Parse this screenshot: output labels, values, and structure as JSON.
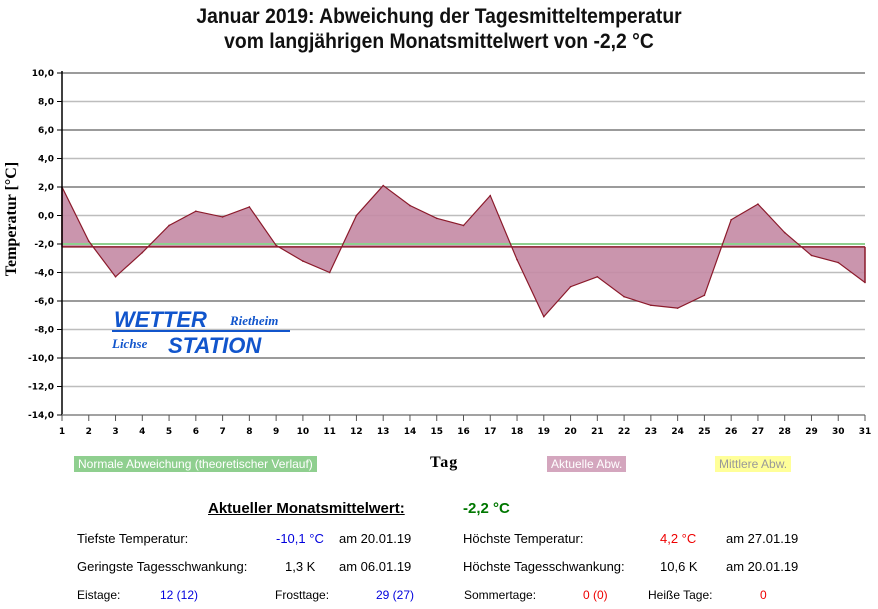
{
  "chart_data": {
    "type": "area",
    "title_line1": "Januar 2019: Abweichung der Tagesmitteltemperatur",
    "title_line2": "vom langjährigen Monatsmittelwert von -2,2 °C",
    "xlabel": "Tag",
    "ylabel": "Temperatur [°C]",
    "ylim": [
      -14,
      10
    ],
    "xlim": [
      1,
      31
    ],
    "grid": true,
    "y_ticks": [
      "10,0",
      "8,0",
      "6,0",
      "4,0",
      "2,0",
      "0,0",
      "-2,0",
      "-4,0",
      "-6,0",
      "-8,0",
      "-10,0",
      "-12,0",
      "-14,0"
    ],
    "y_tick_values": [
      10,
      8,
      6,
      4,
      2,
      0,
      -2,
      -4,
      -6,
      -8,
      -10,
      -12,
      -14
    ],
    "x": [
      1,
      2,
      3,
      4,
      5,
      6,
      7,
      8,
      9,
      10,
      11,
      12,
      13,
      14,
      15,
      16,
      17,
      18,
      19,
      20,
      21,
      22,
      23,
      24,
      25,
      26,
      27,
      28,
      29,
      30,
      31
    ],
    "series": [
      {
        "name": "Aktuelle Abw.",
        "color": "#c48aa4",
        "line_color": "#8b1a2b",
        "values": [
          2.0,
          -1.8,
          -4.3,
          -2.6,
          -0.7,
          0.3,
          -0.1,
          0.6,
          -2.1,
          -3.2,
          -4.0,
          0.0,
          2.1,
          0.7,
          -0.2,
          -0.7,
          1.4,
          -3.1,
          -7.1,
          -5.0,
          -4.3,
          -5.7,
          -6.3,
          -6.5,
          -5.6,
          -0.3,
          0.8,
          -1.2,
          -2.8,
          -3.3,
          -4.7
        ]
      },
      {
        "name": "Normale Abweichung (theoretischer Verlauf)",
        "color": "#8fcf8f",
        "constant": -2.0
      },
      {
        "name": "Mittlere Abw.",
        "color": "#8b1a2b",
        "constant": -2.2
      }
    ],
    "legend": [
      "Normale Abweichung (theoretischer Verlauf)",
      "Aktuelle Abw.",
      "Mittlere Abw."
    ],
    "legend_placement": "bottom"
  },
  "logo": {
    "line1": "WETTER",
    "line1b": "Rietheim",
    "line2a": "Lichse",
    "line2": "STATION"
  },
  "stats": {
    "heading": "Aktueller Monatsmittelwert:",
    "mean_value": "-2,2 °C",
    "min_label": "Tiefste Temperatur:",
    "min_value": "-10,1 °C",
    "min_date": "am 20.01.19",
    "max_label": "Höchste Temperatur:",
    "max_value": "4,2 °C",
    "max_date": "am 27.01.19",
    "minrange_label": "Geringste Tagesschwankung:",
    "minrange_value": "1,3 K",
    "minrange_date": "am 06.01.19",
    "maxrange_label": "Höchste Tagesschwankung:",
    "maxrange_value": "10,6 K",
    "maxrange_date": "am 20.01.19",
    "ice_label": "Eistage:",
    "ice_value": "12 (12)",
    "frost_label": "Frosttage:",
    "frost_value": "29 (27)",
    "summer_label": "Sommertage:",
    "summer_value": "0 (0)",
    "hot_label": "Heiße Tage:",
    "hot_value": "0"
  }
}
